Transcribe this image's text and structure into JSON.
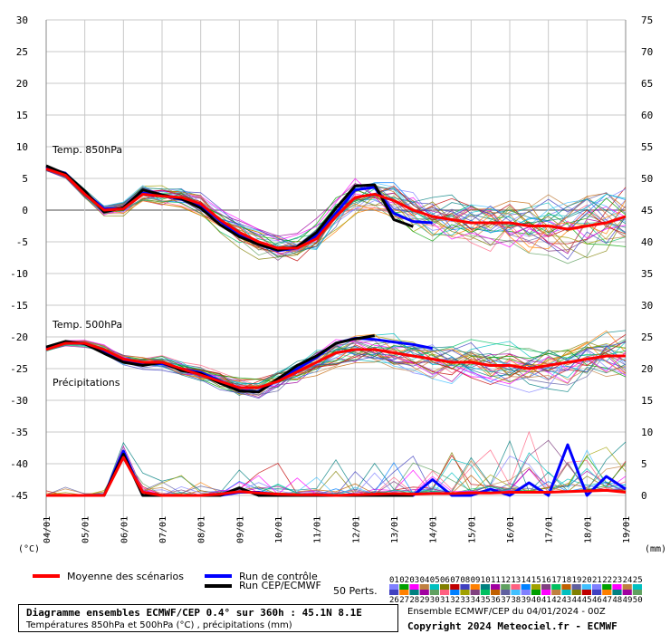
{
  "chart_data": {
    "type": "line",
    "title": "Diagramme ensembles ECMWF/CEP 0.4° sur 360h : 45.1N 8.1E",
    "subtitle": "Températures 850hPa et 500hPa (°C) , précipitations (mm)",
    "run_info": "Ensemble ECMWF/CEP du 04/01/2024 - 00Z",
    "copyright": "Copyright 2024 Meteociel.fr - ECMWF",
    "left_axis_unit": "(°C)",
    "right_axis_unit": "(mm)",
    "left_ticks": [
      "30",
      "25",
      "20",
      "15",
      "10",
      "5",
      "0",
      "-5",
      "-10",
      "-15",
      "-20",
      "-25",
      "-30",
      "-35",
      "-40",
      "-45"
    ],
    "right_ticks": [
      "75",
      "70",
      "65",
      "60",
      "55",
      "50",
      "45",
      "40",
      "35",
      "30",
      "25",
      "20",
      "15",
      "10",
      "5",
      "0"
    ],
    "x_ticks": [
      "04/01",
      "05/01",
      "06/01",
      "07/01",
      "08/01",
      "09/01",
      "10/01",
      "11/01",
      "12/01",
      "13/01",
      "14/01",
      "15/01",
      "16/01",
      "17/01",
      "18/01",
      "19/01"
    ],
    "panel_labels": {
      "t850": "Temp. 850hPa",
      "t500": "Temp. 500hPa",
      "precip": "Précipitations"
    },
    "legend": {
      "mean": "Moyenne des scénarios",
      "control": "Run de contrôle",
      "oper": "Run CEP/ECMWF",
      "perts_label": "50 Perts.",
      "perts_top": [
        "01",
        "02",
        "03",
        "04",
        "05",
        "06",
        "07",
        "08",
        "09",
        "10",
        "11",
        "12",
        "13",
        "14",
        "15",
        "16",
        "17",
        "18",
        "19",
        "20",
        "21",
        "22",
        "23",
        "24",
        "25"
      ],
      "perts_bottom": [
        "26",
        "27",
        "28",
        "29",
        "30",
        "31",
        "32",
        "33",
        "34",
        "35",
        "36",
        "37",
        "38",
        "39",
        "40",
        "41",
        "42",
        "43",
        "44",
        "45",
        "46",
        "47",
        "48",
        "49",
        "50"
      ]
    },
    "colors": {
      "mean": "#ff0000",
      "control": "#0000ff",
      "oper": "#000000",
      "grid": "#c8c8c8"
    },
    "x_days": [
      0,
      0.5,
      1,
      1.5,
      2,
      2.5,
      3,
      3.5,
      4,
      4.5,
      5,
      5.5,
      6,
      6.5,
      7,
      7.5,
      8,
      8.5,
      9,
      9.5,
      10,
      10.5,
      11,
      11.5,
      12,
      12.5,
      13,
      13.5,
      14,
      14.5,
      15
    ],
    "series": [
      {
        "name": "Moyenne des scénarios",
        "panel": "t850",
        "values": [
          6.5,
          5.5,
          2.5,
          0,
          0.2,
          2.5,
          2.2,
          2,
          1,
          -1.5,
          -3.5,
          -5,
          -6,
          -6,
          -4.5,
          -1,
          2,
          2.5,
          1.5,
          0,
          -1,
          -1.5,
          -2,
          -2,
          -2,
          -2.5,
          -2.5,
          -3,
          -2.5,
          -2,
          -1
        ]
      },
      {
        "name": "Run de contrôle",
        "panel": "t850",
        "values": [
          6.8,
          5.8,
          2.8,
          0.2,
          0.2,
          2.7,
          2.3,
          1.7,
          0.8,
          -1.7,
          -3.9,
          -5.4,
          -6.4,
          -6.0,
          -4.0,
          -0.5,
          3.2,
          3.6,
          -0.5,
          -1.8,
          -2.0
        ]
      },
      {
        "name": "Run CEP/ECMWF",
        "panel": "t850",
        "values": [
          7.0,
          5.7,
          3.0,
          -0.3,
          0.4,
          3.2,
          2.4,
          1.8,
          0.3,
          -2.3,
          -4.2,
          -5.4,
          -6.3,
          -5.8,
          -3.5,
          0.3,
          3.8,
          4.0,
          -1.5,
          -2.6
        ]
      },
      {
        "name": "Moyenne des scénarios",
        "panel": "t500",
        "values": [
          -22,
          -21,
          -21,
          -22,
          -23.5,
          -24,
          -24,
          -25,
          -26,
          -27,
          -28,
          -28,
          -27,
          -25.5,
          -24,
          -22.5,
          -22,
          -22,
          -22.5,
          -23,
          -23.5,
          -24,
          -24,
          -24.5,
          -24.5,
          -25,
          -24.5,
          -24,
          -23.5,
          -23,
          -23
        ]
      },
      {
        "name": "Run de contrôle",
        "panel": "t500",
        "values": [
          -21.8,
          -20.8,
          -21.0,
          -22.4,
          -23.8,
          -24.3,
          -24.2,
          -25.1,
          -25.6,
          -26.9,
          -28.5,
          -28.6,
          -26.8,
          -25.0,
          -23.2,
          -21.0,
          -20.2,
          -20.4,
          -20.8,
          -21.2,
          -21.8
        ]
      },
      {
        "name": "Run CEP/ECMWF",
        "panel": "t500",
        "values": [
          -21.6,
          -20.7,
          -21.1,
          -22.6,
          -24.0,
          -24.5,
          -24.0,
          -25.3,
          -25.8,
          -27.3,
          -28.5,
          -28.7,
          -26.6,
          -24.5,
          -23.0,
          -21.0,
          -20.3,
          -19.8
        ]
      },
      {
        "name": "Moyenne des scénarios",
        "panel": "precip",
        "values": [
          0,
          0,
          0,
          0,
          6,
          0.5,
          0,
          0,
          0,
          0.2,
          0.6,
          0.4,
          0.2,
          0.1,
          0.1,
          0,
          0.1,
          0.2,
          0.3,
          0.2,
          0.3,
          0.3,
          0.4,
          0.4,
          0.5,
          0.5,
          0.5,
          0.6,
          0.7,
          0.8,
          0.5
        ]
      },
      {
        "name": "Run de contrôle",
        "panel": "precip",
        "values": [
          0,
          0,
          0,
          0,
          7,
          0,
          0,
          0,
          0,
          0,
          0.5,
          0.5,
          0,
          0,
          0,
          0,
          0,
          0,
          0,
          0,
          2.5,
          0,
          0,
          1,
          0,
          2,
          0,
          8,
          0,
          3,
          1
        ]
      },
      {
        "name": "Run CEP/ECMWF",
        "panel": "precip",
        "values": [
          0,
          0,
          0,
          0,
          6.5,
          0,
          0,
          0,
          0,
          0,
          1.2,
          0,
          0,
          0,
          0,
          0,
          0,
          0,
          0,
          0
        ]
      }
    ],
    "ylim_left": [
      -50,
      30
    ],
    "ylim_right": [
      -5,
      75
    ],
    "grid": true
  }
}
